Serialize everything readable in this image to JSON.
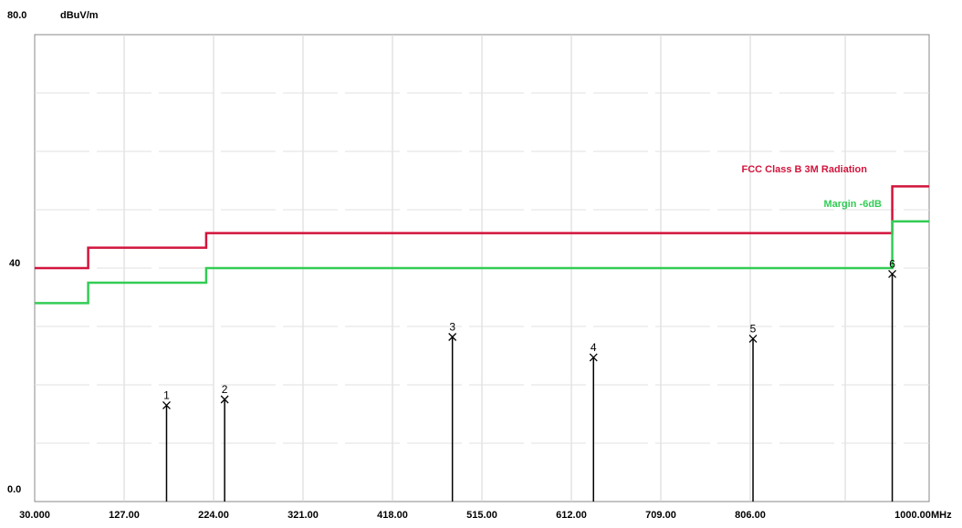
{
  "chart_data": {
    "type": "line",
    "x_unit": "MHz",
    "y_unit": "dBuV/m",
    "y_top_label": "80.0",
    "y_mid_label": "40",
    "y_bottom_label": "0.0",
    "xlim": [
      30,
      1000
    ],
    "ylim": [
      0,
      80
    ],
    "grid": true,
    "x_ticks": [
      "30.000",
      "127.00",
      "224.00",
      "321.00",
      "418.00",
      "515.00",
      "612.00",
      "709.00",
      "806.00",
      "1000.00"
    ],
    "x_tick_values": [
      30,
      127,
      224,
      321,
      418,
      515,
      612,
      709,
      806,
      1000
    ],
    "series": [
      {
        "name": "FCC Class B 3M Radiation",
        "color": "#d2143c",
        "x": [
          30,
          88,
          88,
          216,
          216,
          960,
          960,
          1000
        ],
        "y": [
          40,
          40,
          43.5,
          43.5,
          46,
          46,
          54,
          54
        ]
      },
      {
        "name": "Margin -6dB",
        "color": "#33cc55",
        "x": [
          30,
          88,
          88,
          216,
          216,
          960,
          960,
          1000
        ],
        "y": [
          34,
          34,
          37.5,
          37.5,
          40,
          40,
          48,
          48
        ]
      }
    ],
    "markers": [
      {
        "label": "1",
        "x": 173,
        "y": 16.5
      },
      {
        "label": "2",
        "x": 236,
        "y": 17.5
      },
      {
        "label": "3",
        "x": 483,
        "y": 28.2
      },
      {
        "label": "4",
        "x": 636,
        "y": 24.7
      },
      {
        "label": "5",
        "x": 809,
        "y": 27.9
      },
      {
        "label": "6",
        "x": 960,
        "y": 39.0
      }
    ]
  }
}
